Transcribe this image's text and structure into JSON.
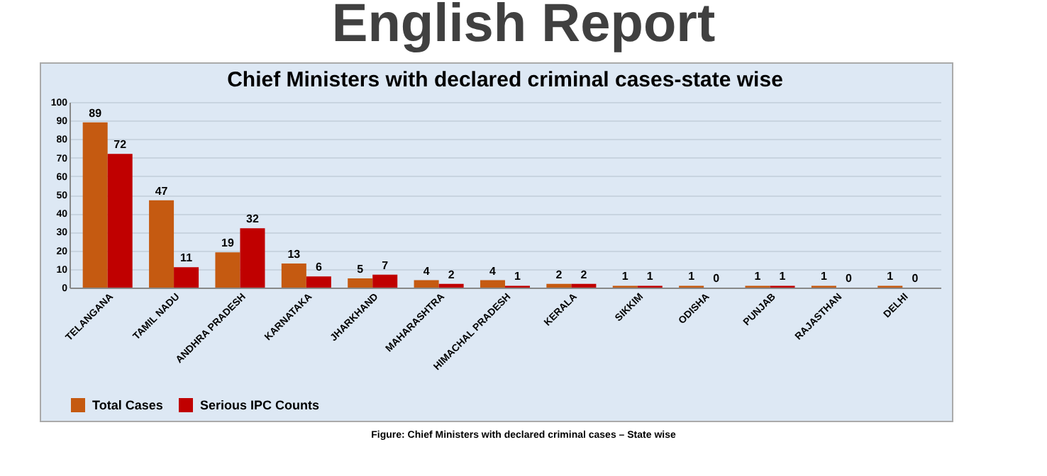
{
  "chart_data": {
    "type": "bar",
    "title": "English Report",
    "subtitle": "Chief Ministers with declared criminal cases-state wise",
    "categories": [
      "TELANGANA",
      "TAMIL NADU",
      "ANDHRA PRADESH",
      "KARNATAKA",
      "JHARKHAND",
      "MAHARASHTRA",
      "HIMACHAL PRADESH",
      "KERALA",
      "SIKKIM",
      "ODISHA",
      "PUNJAB",
      "RAJASTHAN",
      "DELHI"
    ],
    "series": [
      {
        "name": "Total Cases",
        "color": "#c55a11",
        "values": [
          89,
          47,
          19,
          13,
          5,
          4,
          4,
          2,
          1,
          1,
          1,
          1,
          1
        ]
      },
      {
        "name": "Serious IPC Counts",
        "color": "#c00000",
        "values": [
          72,
          11,
          32,
          6,
          7,
          2,
          1,
          2,
          1,
          0,
          1,
          0,
          0
        ]
      }
    ],
    "ylim": [
      0,
      100
    ],
    "yticks": [
      0,
      10,
      20,
      30,
      40,
      50,
      60,
      70,
      80,
      90,
      100
    ],
    "grid": "y",
    "legend": "bottom",
    "data_labels": true,
    "annotations": [
      "Figure: Chief Ministers with declared criminal cases – State wise"
    ]
  }
}
